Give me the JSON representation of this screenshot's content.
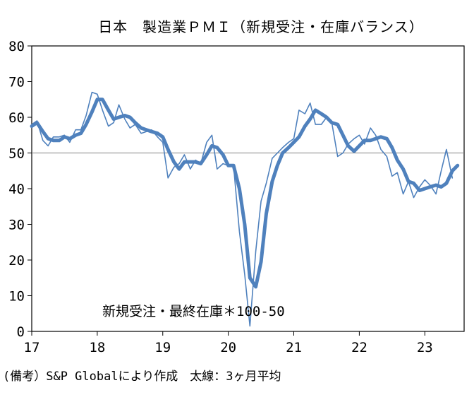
{
  "chart_data": {
    "type": "line",
    "title": "日本　製造業ＰＭＩ（新規受注・在庫バランス）",
    "annotation": "新規受注・最終在庫＊100-50",
    "note": "(備考）S&P Globalにより作成　太線：3ヶ月平均",
    "ylim": [
      0,
      80
    ],
    "y_ticks": [
      "0",
      "10",
      "20",
      "30",
      "40",
      "50",
      "60",
      "70",
      "80"
    ],
    "x_ticks": [
      "17",
      "18",
      "19",
      "20",
      "21",
      "22",
      "23"
    ],
    "xlim": [
      2017.0,
      2023.6
    ],
    "reference_line": 50,
    "grid": false,
    "legend": "none",
    "colors": {
      "series": "#4F81BD",
      "reference": "#808080",
      "axis": "#000000"
    },
    "series": [
      {
        "style": "thin",
        "points": [
          [
            2017.0,
            58.0
          ],
          [
            2017.08,
            59.0
          ],
          [
            2017.17,
            53.5
          ],
          [
            2017.25,
            52.0
          ],
          [
            2017.33,
            54.5
          ],
          [
            2017.42,
            54.5
          ],
          [
            2017.5,
            55.0
          ],
          [
            2017.58,
            53.0
          ],
          [
            2017.67,
            56.5
          ],
          [
            2017.75,
            56.5
          ],
          [
            2017.83,
            60.5
          ],
          [
            2017.92,
            67.0
          ],
          [
            2018.0,
            66.5
          ],
          [
            2018.08,
            62.0
          ],
          [
            2018.17,
            57.5
          ],
          [
            2018.25,
            58.5
          ],
          [
            2018.33,
            63.5
          ],
          [
            2018.42,
            59.5
          ],
          [
            2018.5,
            57.0
          ],
          [
            2018.58,
            58.0
          ],
          [
            2018.67,
            55.5
          ],
          [
            2018.75,
            56.0
          ],
          [
            2018.83,
            56.5
          ],
          [
            2018.92,
            54.5
          ],
          [
            2019.0,
            53.0
          ],
          [
            2019.08,
            43.0
          ],
          [
            2019.17,
            46.0
          ],
          [
            2019.25,
            47.0
          ],
          [
            2019.33,
            49.5
          ],
          [
            2019.42,
            45.5
          ],
          [
            2019.5,
            48.0
          ],
          [
            2019.58,
            47.0
          ],
          [
            2019.67,
            53.0
          ],
          [
            2019.75,
            55.0
          ],
          [
            2019.83,
            45.5
          ],
          [
            2019.92,
            47.0
          ],
          [
            2020.0,
            46.5
          ],
          [
            2020.08,
            46.5
          ],
          [
            2020.17,
            28.0
          ],
          [
            2020.25,
            16.0
          ],
          [
            2020.33,
            1.5
          ],
          [
            2020.42,
            22.5
          ],
          [
            2020.5,
            36.5
          ],
          [
            2020.58,
            41.5
          ],
          [
            2020.67,
            48.5
          ],
          [
            2020.75,
            50.0
          ],
          [
            2020.83,
            51.5
          ],
          [
            2020.92,
            53.0
          ],
          [
            2021.0,
            54.0
          ],
          [
            2021.08,
            62.0
          ],
          [
            2021.17,
            61.0
          ],
          [
            2021.25,
            64.0
          ],
          [
            2021.33,
            58.0
          ],
          [
            2021.42,
            58.0
          ],
          [
            2021.5,
            60.0
          ],
          [
            2021.58,
            58.5
          ],
          [
            2021.67,
            49.0
          ],
          [
            2021.75,
            50.0
          ],
          [
            2021.83,
            52.5
          ],
          [
            2021.92,
            54.0
          ],
          [
            2022.0,
            55.0
          ],
          [
            2022.08,
            52.5
          ],
          [
            2022.17,
            57.0
          ],
          [
            2022.25,
            55.0
          ],
          [
            2022.33,
            51.0
          ],
          [
            2022.42,
            49.0
          ],
          [
            2022.5,
            43.5
          ],
          [
            2022.58,
            44.5
          ],
          [
            2022.67,
            38.5
          ],
          [
            2022.75,
            42.0
          ],
          [
            2022.83,
            37.5
          ],
          [
            2022.92,
            40.5
          ],
          [
            2023.0,
            42.5
          ],
          [
            2023.08,
            41.0
          ],
          [
            2023.17,
            38.5
          ],
          [
            2023.25,
            45.0
          ],
          [
            2023.33,
            51.0
          ],
          [
            2023.42,
            43.0
          ]
        ]
      },
      {
        "style": "thick",
        "points": [
          [
            2017.0,
            57.5
          ],
          [
            2017.08,
            58.5
          ],
          [
            2017.17,
            56.0
          ],
          [
            2017.25,
            54.0
          ],
          [
            2017.33,
            53.5
          ],
          [
            2017.42,
            53.5
          ],
          [
            2017.5,
            54.5
          ],
          [
            2017.58,
            54.0
          ],
          [
            2017.67,
            55.0
          ],
          [
            2017.75,
            55.5
          ],
          [
            2017.83,
            58.0
          ],
          [
            2017.92,
            61.5
          ],
          [
            2018.0,
            65.0
          ],
          [
            2018.08,
            65.0
          ],
          [
            2018.17,
            62.0
          ],
          [
            2018.25,
            59.5
          ],
          [
            2018.33,
            60.0
          ],
          [
            2018.42,
            60.5
          ],
          [
            2018.5,
            60.0
          ],
          [
            2018.58,
            58.5
          ],
          [
            2018.67,
            57.0
          ],
          [
            2018.75,
            56.5
          ],
          [
            2018.83,
            56.0
          ],
          [
            2018.92,
            55.5
          ],
          [
            2019.0,
            54.5
          ],
          [
            2019.08,
            51.0
          ],
          [
            2019.17,
            47.5
          ],
          [
            2019.25,
            45.5
          ],
          [
            2019.33,
            47.5
          ],
          [
            2019.42,
            47.5
          ],
          [
            2019.5,
            47.5
          ],
          [
            2019.58,
            47.0
          ],
          [
            2019.67,
            49.5
          ],
          [
            2019.75,
            52.0
          ],
          [
            2019.83,
            51.5
          ],
          [
            2019.92,
            49.5
          ],
          [
            2020.0,
            46.5
          ],
          [
            2020.08,
            46.5
          ],
          [
            2020.17,
            40.0
          ],
          [
            2020.25,
            30.0
          ],
          [
            2020.33,
            15.0
          ],
          [
            2020.42,
            12.5
          ],
          [
            2020.5,
            19.5
          ],
          [
            2020.58,
            33.0
          ],
          [
            2020.67,
            42.0
          ],
          [
            2020.75,
            46.5
          ],
          [
            2020.83,
            50.0
          ],
          [
            2020.92,
            51.5
          ],
          [
            2021.0,
            53.0
          ],
          [
            2021.08,
            54.5
          ],
          [
            2021.17,
            57.5
          ],
          [
            2021.25,
            59.5
          ],
          [
            2021.33,
            62.0
          ],
          [
            2021.42,
            61.0
          ],
          [
            2021.5,
            60.0
          ],
          [
            2021.58,
            58.5
          ],
          [
            2021.67,
            58.0
          ],
          [
            2021.75,
            55.0
          ],
          [
            2021.83,
            52.0
          ],
          [
            2021.92,
            50.5
          ],
          [
            2022.0,
            52.0
          ],
          [
            2022.08,
            53.5
          ],
          [
            2022.17,
            53.5
          ],
          [
            2022.25,
            54.0
          ],
          [
            2022.33,
            54.5
          ],
          [
            2022.42,
            54.0
          ],
          [
            2022.5,
            51.5
          ],
          [
            2022.58,
            48.0
          ],
          [
            2022.67,
            45.5
          ],
          [
            2022.75,
            42.0
          ],
          [
            2022.83,
            41.5
          ],
          [
            2022.92,
            39.5
          ],
          [
            2023.0,
            40.0
          ],
          [
            2023.08,
            40.5
          ],
          [
            2023.17,
            41.0
          ],
          [
            2023.25,
            40.5
          ],
          [
            2023.33,
            41.5
          ],
          [
            2023.42,
            45.0
          ],
          [
            2023.5,
            46.5
          ]
        ]
      }
    ]
  }
}
